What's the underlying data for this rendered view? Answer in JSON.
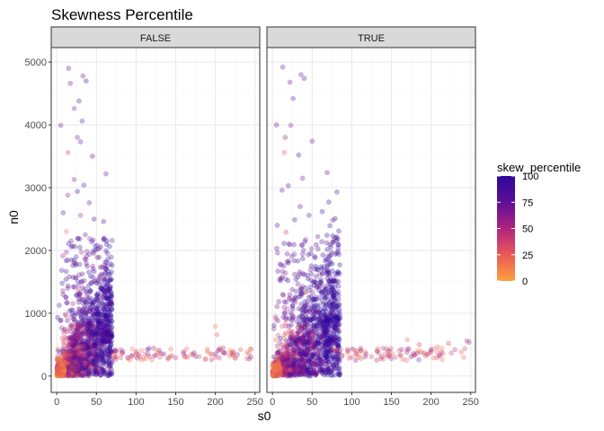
{
  "chart_data": {
    "type": "scatter",
    "title": "Skewness Percentile",
    "xlabel": "s0",
    "ylabel": "n0",
    "xlim": [
      -7,
      256
    ],
    "ylim": [
      -260,
      5230
    ],
    "x_ticks": [
      0,
      50,
      100,
      150,
      200,
      250
    ],
    "y_ticks": [
      0,
      1000,
      2000,
      3000,
      4000,
      5000
    ],
    "facets": [
      "FALSE",
      "TRUE"
    ],
    "grid": true,
    "point_alpha": 0.3,
    "legend": {
      "title": "skew_percentile",
      "position": "right",
      "range": [
        0,
        100
      ],
      "ticks": [
        0,
        25,
        50,
        75,
        100
      ],
      "colors": [
        "#FDA13C",
        "#E85A57",
        "#B1237F",
        "#5E0F97",
        "#30079A"
      ]
    },
    "colors": {
      "panel_border": "#333333",
      "strip_fill": "#d9d9d9",
      "grid_major": "#ebebeb",
      "grid_minor": "#f5f5f5"
    },
    "series": [
      {
        "facet": "FALSE",
        "points": [
          {
            "x": 15,
            "y": 4900,
            "p": 85
          },
          {
            "x": 33,
            "y": 4780,
            "p": 80
          },
          {
            "x": 37,
            "y": 4700,
            "p": 90
          },
          {
            "x": 17,
            "y": 4660,
            "p": 75
          },
          {
            "x": 28,
            "y": 4380,
            "p": 85
          },
          {
            "x": 22,
            "y": 4260,
            "p": 70
          },
          {
            "x": 32,
            "y": 4060,
            "p": 80
          },
          {
            "x": 5,
            "y": 3990,
            "p": 88
          },
          {
            "x": 26,
            "y": 3800,
            "p": 65
          },
          {
            "x": 30,
            "y": 3730,
            "p": 85
          },
          {
            "x": 14,
            "y": 3560,
            "p": 40
          },
          {
            "x": 45,
            "y": 3500,
            "p": 82
          },
          {
            "x": 62,
            "y": 3220,
            "p": 78
          },
          {
            "x": 22,
            "y": 3130,
            "p": 70
          },
          {
            "x": 34,
            "y": 3040,
            "p": 88
          },
          {
            "x": 26,
            "y": 2940,
            "p": 90
          },
          {
            "x": 14,
            "y": 2880,
            "p": 60
          },
          {
            "x": 41,
            "y": 2760,
            "p": 84
          },
          {
            "x": 8,
            "y": 2600,
            "p": 92
          },
          {
            "x": 30,
            "y": 2560,
            "p": 55
          },
          {
            "x": 47,
            "y": 2500,
            "p": 86
          },
          {
            "x": 59,
            "y": 2460,
            "p": 88
          },
          {
            "x": 12,
            "y": 2300,
            "p": 20
          },
          {
            "x": 36,
            "y": 2250,
            "p": 75
          },
          {
            "x": 18,
            "y": 2150,
            "p": 80
          },
          {
            "x": 51,
            "y": 2080,
            "p": 70
          },
          {
            "x": 70,
            "y": 380,
            "p": 60
          },
          {
            "x": 75,
            "y": 300,
            "p": 50
          },
          {
            "x": 82,
            "y": 360,
            "p": 40
          },
          {
            "x": 90,
            "y": 280,
            "p": 30
          },
          {
            "x": 95,
            "y": 330,
            "p": 55
          },
          {
            "x": 100,
            "y": 390,
            "p": 45
          },
          {
            "x": 105,
            "y": 310,
            "p": 35
          },
          {
            "x": 110,
            "y": 280,
            "p": 25
          },
          {
            "x": 115,
            "y": 350,
            "p": 60
          },
          {
            "x": 120,
            "y": 260,
            "p": 20
          },
          {
            "x": 125,
            "y": 330,
            "p": 40
          },
          {
            "x": 130,
            "y": 300,
            "p": 30
          },
          {
            "x": 135,
            "y": 350,
            "p": 55
          },
          {
            "x": 140,
            "y": 270,
            "p": 25
          },
          {
            "x": 145,
            "y": 320,
            "p": 35
          },
          {
            "x": 150,
            "y": 290,
            "p": 45
          },
          {
            "x": 160,
            "y": 360,
            "p": 50
          },
          {
            "x": 165,
            "y": 300,
            "p": 30
          },
          {
            "x": 172,
            "y": 340,
            "p": 40
          },
          {
            "x": 180,
            "y": 310,
            "p": 30
          },
          {
            "x": 188,
            "y": 280,
            "p": 20
          },
          {
            "x": 200,
            "y": 790,
            "p": 15
          },
          {
            "x": 202,
            "y": 660,
            "p": 25
          },
          {
            "x": 205,
            "y": 420,
            "p": 60
          },
          {
            "x": 210,
            "y": 380,
            "p": 35
          },
          {
            "x": 218,
            "y": 320,
            "p": 25
          },
          {
            "x": 222,
            "y": 370,
            "p": 40
          },
          {
            "x": 232,
            "y": 420,
            "p": 30
          },
          {
            "x": 240,
            "y": 380,
            "p": 20
          },
          {
            "x": 245,
            "y": 430,
            "p": 35
          }
        ]
      },
      {
        "facet": "TRUE",
        "points": [
          {
            "x": 13,
            "y": 4920,
            "p": 85
          },
          {
            "x": 36,
            "y": 4800,
            "p": 80
          },
          {
            "x": 40,
            "y": 4740,
            "p": 88
          },
          {
            "x": 22,
            "y": 4680,
            "p": 75
          },
          {
            "x": 26,
            "y": 4420,
            "p": 82
          },
          {
            "x": 5,
            "y": 4000,
            "p": 86
          },
          {
            "x": 23,
            "y": 3990,
            "p": 70
          },
          {
            "x": 16,
            "y": 3800,
            "p": 60
          },
          {
            "x": 50,
            "y": 3740,
            "p": 84
          },
          {
            "x": 15,
            "y": 3560,
            "p": 30
          },
          {
            "x": 33,
            "y": 3520,
            "p": 88
          },
          {
            "x": 69,
            "y": 3240,
            "p": 80
          },
          {
            "x": 38,
            "y": 3150,
            "p": 75
          },
          {
            "x": 20,
            "y": 3030,
            "p": 90
          },
          {
            "x": 12,
            "y": 2960,
            "p": 78
          },
          {
            "x": 35,
            "y": 2700,
            "p": 84
          },
          {
            "x": 46,
            "y": 2560,
            "p": 86
          },
          {
            "x": 28,
            "y": 2490,
            "p": 92
          },
          {
            "x": 76,
            "y": 2480,
            "p": 80
          },
          {
            "x": 6,
            "y": 2400,
            "p": 88
          },
          {
            "x": 17,
            "y": 2290,
            "p": 40
          },
          {
            "x": 57,
            "y": 2220,
            "p": 70
          },
          {
            "x": 41,
            "y": 2140,
            "p": 82
          },
          {
            "x": 80,
            "y": 380,
            "p": 55
          },
          {
            "x": 88,
            "y": 330,
            "p": 40
          },
          {
            "x": 95,
            "y": 400,
            "p": 60
          },
          {
            "x": 100,
            "y": 300,
            "p": 30
          },
          {
            "x": 105,
            "y": 360,
            "p": 45
          },
          {
            "x": 112,
            "y": 280,
            "p": 25
          },
          {
            "x": 118,
            "y": 350,
            "p": 50
          },
          {
            "x": 125,
            "y": 310,
            "p": 35
          },
          {
            "x": 132,
            "y": 390,
            "p": 60
          },
          {
            "x": 140,
            "y": 270,
            "p": 20
          },
          {
            "x": 148,
            "y": 330,
            "p": 40
          },
          {
            "x": 155,
            "y": 300,
            "p": 30
          },
          {
            "x": 163,
            "y": 420,
            "p": 55
          },
          {
            "x": 170,
            "y": 580,
            "p": 20
          },
          {
            "x": 178,
            "y": 360,
            "p": 45
          },
          {
            "x": 185,
            "y": 500,
            "p": 35
          },
          {
            "x": 193,
            "y": 320,
            "p": 25
          },
          {
            "x": 200,
            "y": 380,
            "p": 40
          },
          {
            "x": 208,
            "y": 460,
            "p": 30
          },
          {
            "x": 215,
            "y": 360,
            "p": 20
          },
          {
            "x": 222,
            "y": 520,
            "p": 35
          },
          {
            "x": 230,
            "y": 420,
            "p": 45
          },
          {
            "x": 238,
            "y": 380,
            "p": 25
          },
          {
            "x": 245,
            "y": 560,
            "p": 55
          },
          {
            "x": 248,
            "y": 540,
            "p": 60
          }
        ]
      }
    ]
  }
}
